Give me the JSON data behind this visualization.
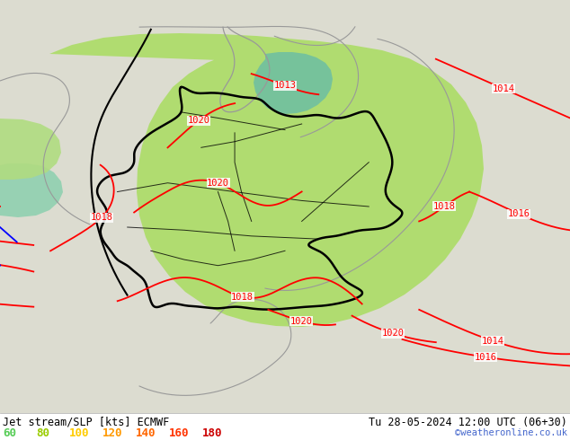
{
  "title_left": "Jet stream/SLP [kts] ECMWF",
  "title_right": "Tu 28-05-2024 12:00 UTC (06+30)",
  "credit": "©weatheronline.co.uk",
  "legend_values": [
    "60",
    "80",
    "100",
    "120",
    "140",
    "160",
    "180"
  ],
  "legend_colors": [
    "#55cc55",
    "#99cc00",
    "#ffcc00",
    "#ff9900",
    "#ff6600",
    "#ff3300",
    "#cc0000"
  ],
  "background_color": "#e8e8e0",
  "land_color": "#c8e8a0",
  "sea_color": "#d0e8f0",
  "germany_fill": "#90cc50",
  "teal_fill": "#80c8b0",
  "bottom_bar_color": "#ffffff",
  "border_color": "#888888",
  "pressure_color": "#ff0000",
  "coast_color": "#888888",
  "germany_border_color": "#000000",
  "blue_line_color": "#0000ff",
  "black_line_color": "#000000",
  "label_bg": "#ffffff",
  "fig_width": 6.34,
  "fig_height": 4.9,
  "dpi": 100
}
